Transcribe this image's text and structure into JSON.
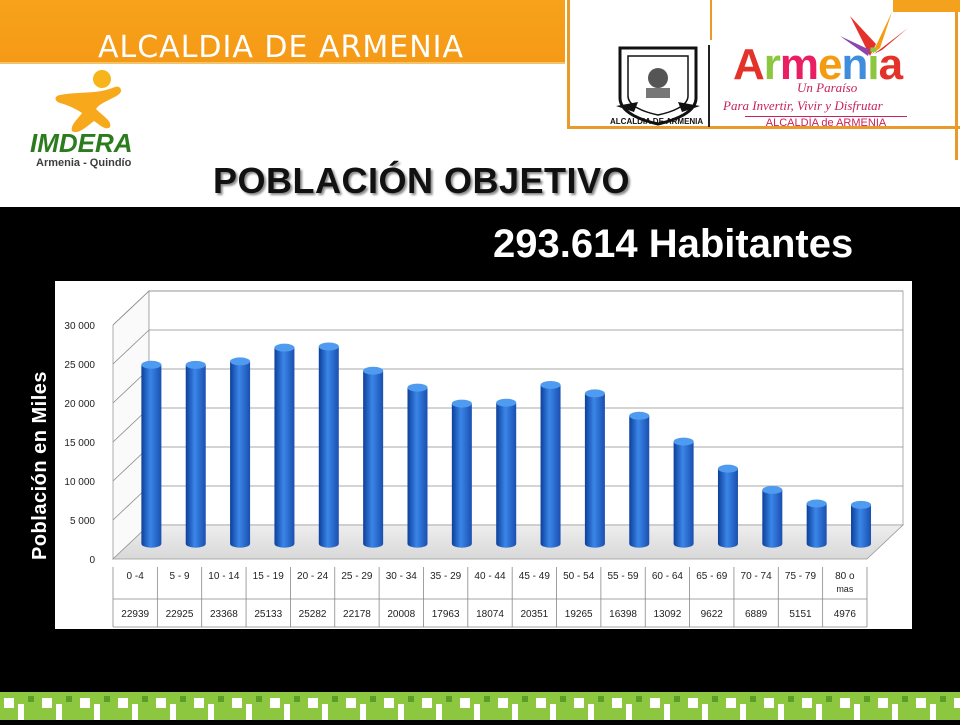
{
  "header": {
    "title": "ALCALDIA DE ARMENIA",
    "imdera_name": "IMDERA",
    "imdera_sub": "Armenia - Quindío",
    "seal_caption": "ALCALDIA DE ARMENIA",
    "armenia_brand": "Armenia",
    "armenia_paraiso": "Un Paraíso",
    "armenia_slogan": "Para Invertir, Vivir y Disfrutar",
    "armenia_alcaldia": "ALCALDÍA de ARMENIA"
  },
  "main": {
    "title": "POBLACIÓN OBJETIVO",
    "total": "293.614 Habitantes",
    "y_axis_title": "Población en Miles"
  },
  "colors": {
    "orange": "#f7a21b",
    "green": "#8dc63f",
    "bar_blue": "#1f5fc0"
  },
  "chart_data": {
    "type": "bar",
    "ylabel": "Población en Miles",
    "ylim": [
      0,
      30000
    ],
    "yticks": [
      "0",
      "5 000",
      "10 000",
      "15 000",
      "20 000",
      "25 000",
      "30 000"
    ],
    "categories": [
      "0 -4",
      "5 - 9",
      "10 - 14",
      "15 - 19",
      "20 - 24",
      "25 - 29",
      "30 - 34",
      "35 - 29",
      "40 - 44",
      "45 - 49",
      "50 - 54",
      "55 - 59",
      "60 - 64",
      "65 - 69",
      "70 - 74",
      "75 - 79",
      "80 o mas"
    ],
    "values": [
      22939,
      22925,
      23368,
      25133,
      25282,
      22178,
      20008,
      17963,
      18074,
      20351,
      19265,
      16398,
      13092,
      9622,
      6889,
      5151,
      4976
    ],
    "value_labels": [
      "22939",
      "22925",
      "23368",
      "25133",
      "25282",
      "22178",
      "20008",
      "17963",
      "18074",
      "20351",
      "19265",
      "16398",
      "13092",
      "9622",
      "6889",
      "5151",
      "4976"
    ],
    "grid": true,
    "legend": "none"
  }
}
